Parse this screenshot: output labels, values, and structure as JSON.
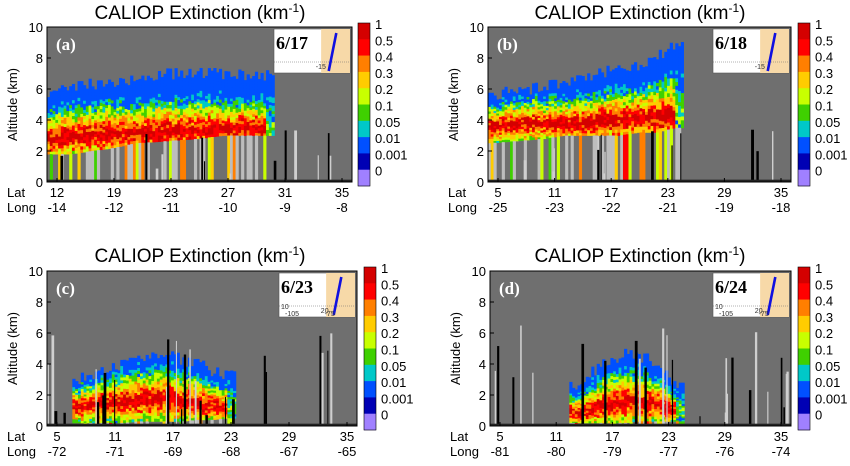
{
  "chart_data": [
    {
      "type": "heatmap",
      "panel_label": "(a)",
      "date": "6/17",
      "title": "CALIOP Extinction (km",
      "title_sup": "-1",
      "title_end": ")",
      "ylabel": "Altitude (km)",
      "ylim": [
        0,
        10
      ],
      "yticks": [
        "0",
        "2",
        "4",
        "6",
        "8",
        "10"
      ],
      "x_row1_label": "Lat",
      "x_row2_label": "Long",
      "lat_ticks": [
        "12",
        "19",
        "23",
        "27",
        "31",
        "35"
      ],
      "long_ticks": [
        "-14",
        "-12",
        "-11",
        "-10",
        "-9",
        "-8"
      ],
      "colorbar_labels": [
        "1",
        "0.5",
        "0.4",
        "0.3",
        "0.2",
        "0.1",
        "0.05",
        "0.01",
        "0.001",
        "0"
      ],
      "inset_ticks": [
        "-15"
      ],
      "layer_profile": {
        "top_km": [
          5.8,
          6.0,
          6.3,
          6.5,
          6.7,
          6.9,
          7.0,
          7.0,
          7.0,
          6.9,
          6.9
        ],
        "base_km": [
          1.8,
          1.8,
          2.0,
          2.2,
          2.5,
          2.6,
          2.7,
          2.8,
          3.0,
          3.0,
          3.0
        ],
        "peak_km": [
          2.8,
          3.0,
          3.0,
          3.2,
          3.2,
          3.3,
          3.3,
          3.4,
          3.4,
          3.5,
          3.5
        ],
        "end_fraction": 0.72
      }
    },
    {
      "type": "heatmap",
      "panel_label": "(b)",
      "date": "6/18",
      "title": "CALIOP Extinction (km",
      "title_sup": "-1",
      "title_end": ")",
      "ylabel": "Altitude (km)",
      "ylim": [
        0,
        10
      ],
      "yticks": [
        "0",
        "2",
        "4",
        "6",
        "8",
        "10"
      ],
      "x_row1_label": "Lat",
      "x_row2_label": "Long",
      "lat_ticks": [
        "5",
        "11",
        "17",
        "23",
        "29",
        "35"
      ],
      "long_ticks": [
        "-25",
        "-23",
        "-22",
        "-21",
        "-19",
        "-18"
      ],
      "colorbar_labels": [
        "1",
        "0.5",
        "0.4",
        "0.3",
        "0.2",
        "0.1",
        "0.05",
        "0.01",
        "0.001",
        "0"
      ],
      "inset_ticks": [
        "-15"
      ],
      "layer_profile": {
        "top_km": [
          5.5,
          5.8,
          6.0,
          6.2,
          6.5,
          6.7,
          7.0,
          7.3,
          7.6,
          8.0,
          9.0
        ],
        "base_km": [
          2.5,
          2.6,
          2.7,
          2.8,
          3.0,
          3.0,
          3.0,
          3.0,
          3.2,
          3.2,
          3.5
        ],
        "peak_km": [
          3.5,
          3.7,
          3.8,
          3.8,
          3.8,
          3.8,
          4.0,
          4.0,
          4.2,
          4.2,
          4.4
        ],
        "end_fraction": 0.62
      }
    },
    {
      "type": "heatmap",
      "panel_label": "(c)",
      "date": "6/23",
      "title": "CALIOP Extinction (km",
      "title_sup": "-1",
      "title_end": ")",
      "ylabel": "Altitude (km)",
      "ylim": [
        0,
        10
      ],
      "yticks": [
        "0",
        "2",
        "4",
        "6",
        "8",
        "10"
      ],
      "x_row1_label": "Lat",
      "x_row2_label": "Long",
      "lat_ticks": [
        "5",
        "11",
        "17",
        "23",
        "29",
        "35"
      ],
      "long_ticks": [
        "-72",
        "-71",
        "-69",
        "-68",
        "-67",
        "-65"
      ],
      "colorbar_labels": [
        "1",
        "0.5",
        "0.4",
        "0.3",
        "0.2",
        "0.1",
        "0.05",
        "0.01",
        "0.001",
        "0"
      ],
      "inset_ticks": [
        "20",
        "10",
        "-105",
        "-75"
      ],
      "layer_profile": {
        "top_km": [
          3.0,
          3.3,
          3.6,
          3.9,
          4.2,
          4.5,
          4.5,
          4.3,
          4.0,
          3.6,
          3.2
        ],
        "base_km": [
          0.2,
          0.2,
          0.2,
          0.2,
          0.3,
          0.3,
          0.3,
          0.3,
          0.4,
          0.4,
          0.5
        ],
        "peak_km": [
          1.2,
          1.4,
          1.5,
          1.6,
          1.7,
          1.8,
          1.8,
          1.6,
          1.5,
          1.4,
          1.2
        ],
        "start_fraction": 0.1,
        "end_fraction": 0.58
      }
    },
    {
      "type": "heatmap",
      "panel_label": "(d)",
      "date": "6/24",
      "title": "CALIOP Extinction (km",
      "title_sup": "-1",
      "title_end": ")",
      "ylabel": "Altitude (km)",
      "ylim": [
        0,
        10
      ],
      "yticks": [
        "0",
        "2",
        "4",
        "6",
        "8",
        "10"
      ],
      "x_row1_label": "Lat",
      "x_row2_label": "Long",
      "lat_ticks": [
        "5",
        "11",
        "17",
        "23",
        "29",
        "35"
      ],
      "long_ticks": [
        "-81",
        "-80",
        "-79",
        "-77",
        "-76",
        "-74"
      ],
      "colorbar_labels": [
        "1",
        "0.5",
        "0.4",
        "0.3",
        "0.2",
        "0.1",
        "0.05",
        "0.01",
        "0.001",
        "0"
      ],
      "inset_ticks": [
        "20",
        "10",
        "-105",
        "-75"
      ],
      "layer_profile": {
        "top_km": [
          2.5,
          3.0,
          3.6,
          4.0,
          4.4,
          4.6,
          4.6,
          4.4,
          4.0,
          3.4,
          2.8
        ],
        "base_km": [
          0.2,
          0.2,
          0.2,
          0.2,
          0.2,
          0.2,
          0.3,
          0.3,
          0.3,
          0.3,
          0.3
        ],
        "peak_km": [
          0.8,
          1.0,
          1.2,
          1.4,
          1.5,
          1.6,
          1.6,
          1.5,
          1.4,
          1.2,
          1.0
        ],
        "start_fraction": 0.28,
        "end_fraction": 0.62
      }
    }
  ],
  "colors": {
    "no_signal": "#6f6f6f",
    "surface": "#000000",
    "colorbar": [
      "#d40000",
      "#ff0000",
      "#ff7f00",
      "#ffcc00",
      "#c8ff00",
      "#3fd000",
      "#00c8c8",
      "#0050ff",
      "#0000b4",
      "#a080ff"
    ],
    "inset_land": "#f7d9a8",
    "inset_track": "#1010e0"
  }
}
